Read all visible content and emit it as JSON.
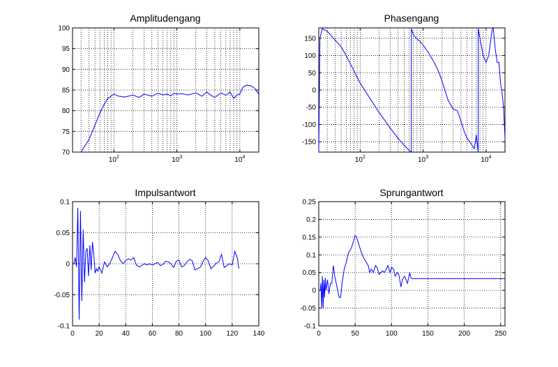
{
  "figure": {
    "background": "#ffffff",
    "series_color": "#0000ff"
  },
  "chart_data": [
    {
      "type": "line",
      "title": "Amplitudengang",
      "xscale": "log",
      "xlim": [
        22,
        20000
      ],
      "ylim": [
        70,
        100
      ],
      "yticks": [
        70,
        75,
        80,
        85,
        90,
        95,
        100
      ],
      "xticks": [
        100,
        1000,
        10000
      ],
      "xticklabels": [
        {
          "base": "10",
          "exp": "2"
        },
        {
          "base": "10",
          "exp": "3"
        },
        {
          "base": "10",
          "exp": "4"
        }
      ],
      "grid": true,
      "series": [
        {
          "x": [
            30,
            40,
            50,
            60,
            70,
            80,
            90,
            100,
            120,
            150,
            200,
            250,
            300,
            400,
            500,
            600,
            700,
            800,
            900,
            1000,
            1200,
            1500,
            2000,
            2500,
            3000,
            3500,
            4000,
            5000,
            6000,
            7000,
            8000,
            9000,
            10000,
            11000,
            12000,
            13000,
            15000,
            17000,
            20000
          ],
          "y": [
            70,
            73,
            76.5,
            79.5,
            81.5,
            83,
            83.5,
            84,
            83.5,
            83.3,
            83.8,
            83.2,
            84,
            83.5,
            84.2,
            83.8,
            84,
            83.6,
            84.2,
            84,
            84.1,
            83.8,
            84.3,
            83.5,
            84.5,
            83.7,
            83.2,
            84.3,
            83.7,
            84.5,
            83,
            83.8,
            84,
            85.5,
            86,
            86.2,
            86,
            85.5,
            84
          ]
        }
      ]
    },
    {
      "type": "line",
      "title": "Phasengang",
      "xscale": "log",
      "xlim": [
        22,
        20000
      ],
      "ylim": [
        -180,
        180
      ],
      "yticks": [
        -150,
        -100,
        -50,
        0,
        50,
        100,
        150
      ],
      "xticks": [
        100,
        1000,
        10000
      ],
      "xticklabels": [
        {
          "base": "10",
          "exp": "2"
        },
        {
          "base": "10",
          "exp": "3"
        },
        {
          "base": "10",
          "exp": "4"
        }
      ],
      "grid": true,
      "series": [
        {
          "x": [
            22,
            23,
            25,
            30,
            40,
            50,
            60,
            80,
            100,
            150,
            200,
            300,
            400,
            500,
            600,
            650,
            650,
            700,
            800,
            900,
            1000,
            1200,
            1500,
            1800,
            2000,
            2500,
            3000,
            3500,
            4000,
            4500,
            5000,
            5500,
            6000,
            6500,
            7000,
            7500,
            7500,
            7800,
            8000,
            9000,
            10000,
            11000,
            12000,
            12500,
            13000,
            14000,
            15000,
            16000,
            17000,
            18000,
            19000,
            20000
          ],
          "y": [
            -180,
            150,
            178,
            170,
            145,
            125,
            100,
            55,
            20,
            -30,
            -65,
            -110,
            -140,
            -160,
            -175,
            -180,
            178,
            160,
            148,
            140,
            130,
            110,
            80,
            50,
            25,
            -30,
            -55,
            -60,
            -90,
            -120,
            -140,
            -150,
            -160,
            -170,
            -130,
            -180,
            178,
            160,
            150,
            100,
            80,
            100,
            150,
            175,
            180,
            120,
            80,
            80,
            20,
            -10,
            -50,
            -140
          ]
        }
      ]
    },
    {
      "type": "line",
      "title": "Impulsantwort",
      "xscale": "linear",
      "xlim": [
        0,
        140
      ],
      "ylim": [
        -0.1,
        0.1
      ],
      "yticks": [
        -0.1,
        -0.05,
        0,
        0.05,
        0.1
      ],
      "yticklabels": [
        "-0.1",
        "-0.05",
        "0",
        "0.05",
        "0.1"
      ],
      "xticks": [
        0,
        20,
        40,
        60,
        80,
        100,
        120,
        140
      ],
      "grid": true,
      "series": [
        {
          "x": [
            1,
            2,
            3,
            4,
            5,
            6,
            7,
            8,
            9,
            10,
            11,
            12,
            13,
            14,
            15,
            16,
            17,
            18,
            19,
            20,
            22,
            24,
            26,
            28,
            30,
            32,
            34,
            36,
            38,
            40,
            42,
            44,
            46,
            48,
            50,
            52,
            54,
            56,
            58,
            60,
            62,
            64,
            66,
            68,
            70,
            72,
            74,
            76,
            78,
            80,
            82,
            84,
            86,
            88,
            90,
            92,
            94,
            96,
            98,
            100,
            102,
            104,
            106,
            108,
            110,
            112,
            114,
            116,
            118,
            120,
            122,
            124,
            125
          ],
          "y": [
            0,
            0.01,
            -0.005,
            0.09,
            -0.09,
            0.085,
            -0.06,
            0.055,
            -0.03,
            0.02,
            0.025,
            -0.02,
            0.03,
            -0.01,
            0.035,
            0.015,
            -0.015,
            -0.008,
            -0.012,
            -0.005,
            -0.015,
            0.003,
            -0.005,
            0,
            0.01,
            0.02,
            0.015,
            0.005,
            0,
            0.005,
            0.008,
            0.006,
            0.01,
            -0.002,
            -0.005,
            -0.003,
            0,
            -0.002,
            0,
            -0.002,
            0,
            0.002,
            -0.003,
            -0.001,
            0.004,
            0.003,
            0,
            -0.006,
            0.004,
            0.006,
            -0.005,
            -0.003,
            0.003,
            0.007,
            0.005,
            -0.01,
            -0.008,
            -0.006,
            0.003,
            0.01,
            0.005,
            -0.008,
            -0.004,
            0.001,
            0.003,
            0.015,
            -0.006,
            -0.003,
            0,
            -0.002,
            0.02,
            0.008,
            -0.008
          ]
        }
      ]
    },
    {
      "type": "line",
      "title": "Sprungantwort",
      "xscale": "linear",
      "xlim": [
        0,
        256
      ],
      "ylim": [
        -0.1,
        0.25
      ],
      "yticks": [
        -0.1,
        -0.05,
        0,
        0.05,
        0.1,
        0.15,
        0.2,
        0.25
      ],
      "yticklabels": [
        "-0.1",
        "-0.05",
        "0",
        "0.05",
        "0.1",
        "0.15",
        "0.2",
        "0.25"
      ],
      "xticks": [
        0,
        50,
        100,
        150,
        200,
        250
      ],
      "grid": true,
      "series": [
        {
          "x": [
            0,
            2,
            3,
            4,
            5,
            6,
            7,
            8,
            9,
            10,
            12,
            14,
            16,
            18,
            20,
            22,
            25,
            28,
            30,
            32,
            35,
            38,
            40,
            42,
            45,
            48,
            50,
            52,
            55,
            58,
            60,
            62,
            65,
            68,
            70,
            72,
            75,
            78,
            80,
            83,
            85,
            88,
            90,
            93,
            95,
            98,
            100,
            103,
            105,
            108,
            110,
            113,
            115,
            118,
            120,
            122,
            125,
            126,
            127,
            128,
            130,
            140,
            150,
            200,
            256
          ],
          "y": [
            0,
            0,
            0.02,
            -0.05,
            0.04,
            -0.05,
            0.03,
            -0.02,
            0.035,
            0,
            0.03,
            -0.01,
            0.02,
            0.02,
            0.07,
            0.04,
            0.01,
            -0.02,
            -0.02,
            0.02,
            0.06,
            0.08,
            0.1,
            0.11,
            0.12,
            0.14,
            0.155,
            0.15,
            0.13,
            0.11,
            0.1,
            0.09,
            0.08,
            0.07,
            0.05,
            0.06,
            0.05,
            0.07,
            0.065,
            0.045,
            0.05,
            0.055,
            0.05,
            0.06,
            0.07,
            0.05,
            0.065,
            0.06,
            0.04,
            0.05,
            0.045,
            0.01,
            0.03,
            0.04,
            0.03,
            0.02,
            0.05,
            0.04,
            0.035,
            0.033,
            0.033,
            0.033,
            0.033,
            0.033,
            0.033
          ]
        }
      ]
    }
  ]
}
